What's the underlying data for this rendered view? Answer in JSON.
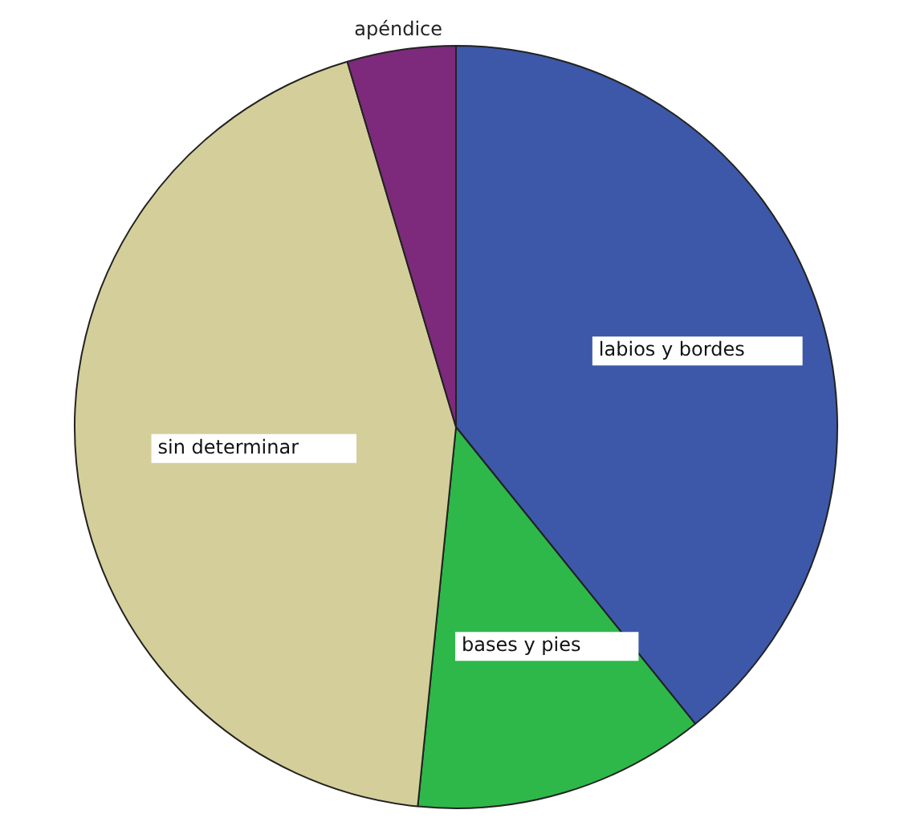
{
  "chart_data": {
    "type": "pie",
    "categories": [
      "labios y bordes",
      "bases y pies",
      "sin determinar",
      "apéndice"
    ],
    "values": [
      39.2,
      12.4,
      43.8,
      4.6
    ],
    "colors": [
      "#3d58a8",
      "#2eb84a",
      "#d4cf9a",
      "#7e2a7c"
    ],
    "legend": false
  }
}
